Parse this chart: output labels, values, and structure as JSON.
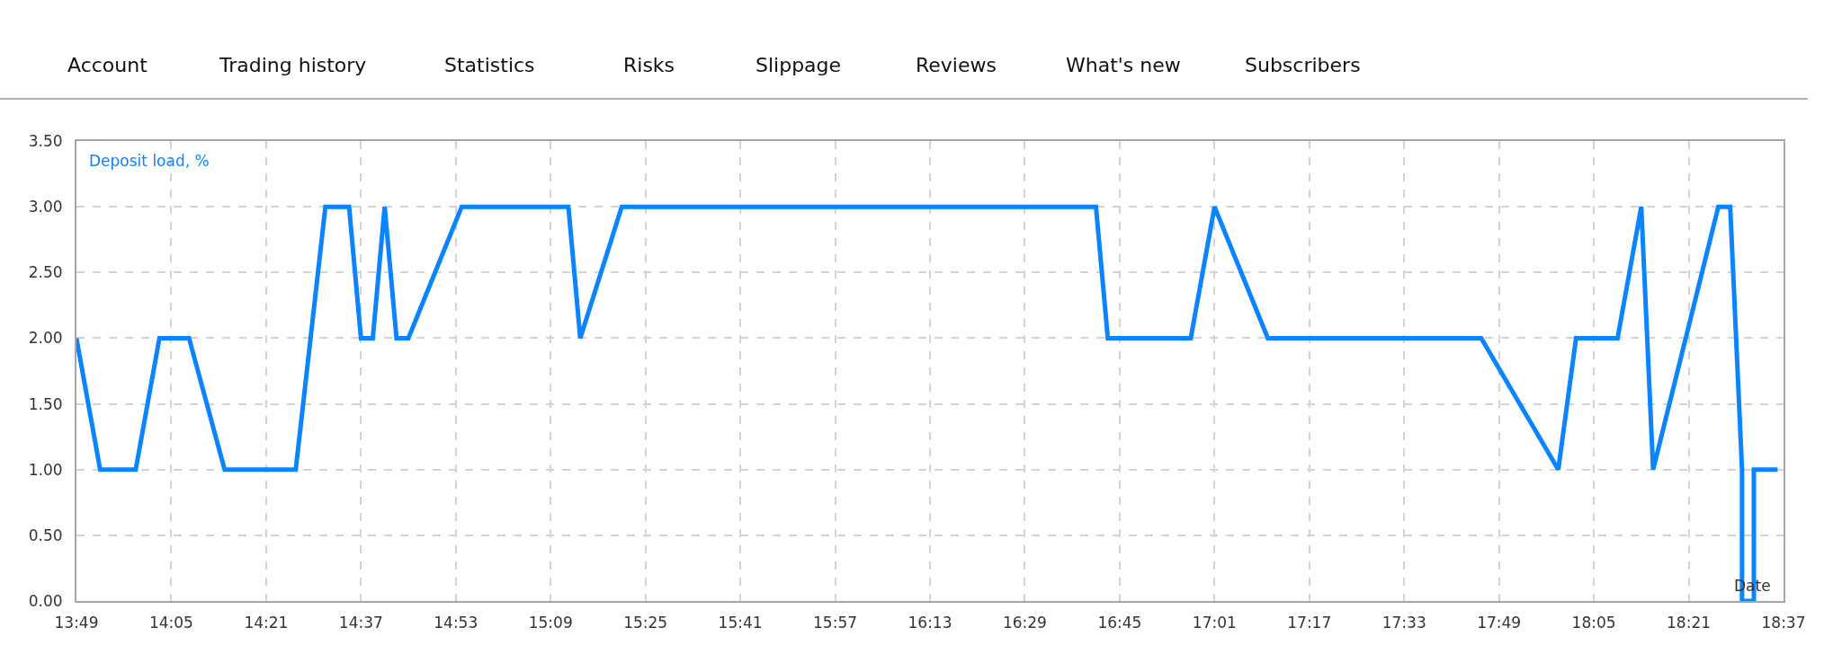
{
  "chart_data": {
    "type": "line",
    "xlabel": "Date",
    "ylabel": "Deposit load, %",
    "annotations": [
      "Account",
      "Trading history",
      "Statistics",
      "Risks",
      "Slippage",
      "Reviews",
      "What's new",
      "Subscribers"
    ],
    "x": [
      13.8167,
      13.8833,
      13.9833,
      14.05,
      14.1333,
      14.2333,
      14.4333,
      14.5167,
      14.5833,
      14.6167,
      14.65,
      14.6833,
      14.7167,
      14.75,
      14.9,
      15.2,
      15.2333,
      15.35,
      16.6833,
      16.7167,
      16.95,
      17.0167,
      17.1667,
      17.7667,
      17.9833,
      18.0333,
      18.15,
      18.2167,
      18.25,
      18.4333,
      18.4667,
      18.5,
      18.5,
      18.5333,
      18.5333,
      18.6
    ],
    "series": [
      {
        "color": "#0a84ff",
        "values": [
          2.0,
          1.0,
          1.0,
          2.0,
          2.0,
          1.0,
          1.0,
          3.0,
          3.0,
          2.0,
          2.0,
          3.0,
          2.0,
          2.0,
          3.0,
          3.0,
          2.0,
          3.0,
          3.0,
          2.0,
          2.0,
          3.0,
          2.0,
          2.0,
          1.0,
          2.0,
          2.0,
          3.0,
          1.0,
          3.0,
          3.0,
          1.0,
          0.0,
          0.0,
          1.0,
          1.0
        ]
      }
    ],
    "xlim": [
      13.8167,
      18.6167
    ],
    "xticks": [
      {
        "value": 13.8167,
        "label": "13:49"
      },
      {
        "value": 14.0833,
        "label": "14:05"
      },
      {
        "value": 14.35,
        "label": "14:21"
      },
      {
        "value": 14.6167,
        "label": "14:37"
      },
      {
        "value": 14.8833,
        "label": "14:53"
      },
      {
        "value": 15.15,
        "label": "15:09"
      },
      {
        "value": 15.4167,
        "label": "15:25"
      },
      {
        "value": 15.6833,
        "label": "15:41"
      },
      {
        "value": 15.95,
        "label": "15:57"
      },
      {
        "value": 16.2167,
        "label": "16:13"
      },
      {
        "value": 16.4833,
        "label": "16:29"
      },
      {
        "value": 16.75,
        "label": "16:45"
      },
      {
        "value": 17.0167,
        "label": "17:01"
      },
      {
        "value": 17.2833,
        "label": "17:17"
      },
      {
        "value": 17.55,
        "label": "17:33"
      },
      {
        "value": 17.8167,
        "label": "17:49"
      },
      {
        "value": 18.0833,
        "label": "18:05"
      },
      {
        "value": 18.35,
        "label": "18:21"
      },
      {
        "value": 18.6167,
        "label": "18:37"
      }
    ],
    "ylim": [
      0,
      3.5
    ],
    "yticks": [
      {
        "value": 0,
        "label": "0.00"
      },
      {
        "value": 0.5,
        "label": "0.50"
      },
      {
        "value": 1.0,
        "label": "1.00"
      },
      {
        "value": 1.5,
        "label": "1.50"
      },
      {
        "value": 2.0,
        "label": "2.00"
      },
      {
        "value": 2.5,
        "label": "2.50"
      },
      {
        "value": 3.0,
        "label": "3.00"
      },
      {
        "value": 3.5,
        "label": "3.50"
      }
    ],
    "grid": true,
    "marker": "none",
    "line_style": "solid"
  }
}
